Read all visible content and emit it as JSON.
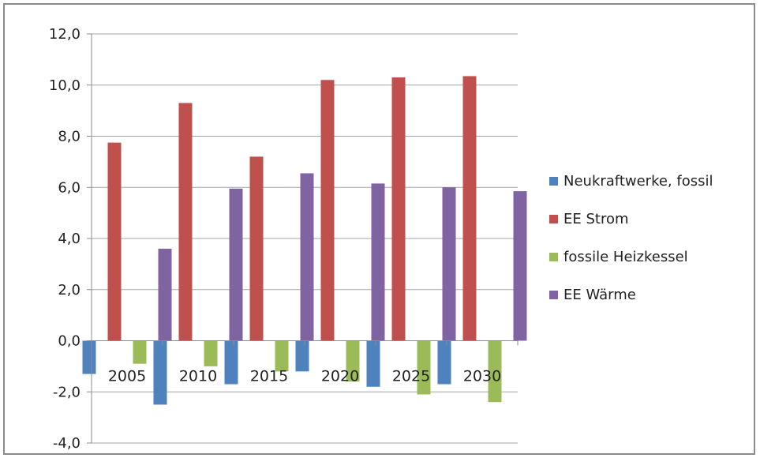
{
  "chart_data": {
    "type": "bar",
    "title": "",
    "xlabel": "",
    "ylabel": "",
    "categories": [
      "2005",
      "2010",
      "2015",
      "2020",
      "2025",
      "2030"
    ],
    "series": [
      {
        "name": "Neukraftwerke, fossil",
        "color": "#4f81bd",
        "values": [
          -1.3,
          -2.5,
          -1.7,
          -1.2,
          -1.8,
          -1.7
        ]
      },
      {
        "name": "EE Strom",
        "color": "#c0504d",
        "values": [
          7.75,
          9.3,
          7.2,
          10.2,
          10.3,
          10.35
        ]
      },
      {
        "name": "fossile Heizkessel",
        "color": "#9bbb59",
        "values": [
          -0.9,
          -1.0,
          -1.2,
          -1.6,
          -2.1,
          -2.4
        ]
      },
      {
        "name": "EE Wärme",
        "color": "#8064a2",
        "values": [
          3.6,
          5.95,
          6.55,
          6.15,
          6.0,
          5.85
        ]
      }
    ],
    "ylim": [
      -4.0,
      12.0
    ],
    "yticks": [
      {
        "value": -4,
        "label": "-4,0"
      },
      {
        "value": -2,
        "label": "-2,0"
      },
      {
        "value": 0,
        "label": "0,0"
      },
      {
        "value": 2,
        "label": "2,0"
      },
      {
        "value": 4,
        "label": "4,0"
      },
      {
        "value": 6,
        "label": "6,0"
      },
      {
        "value": 8,
        "label": "8,0"
      },
      {
        "value": 10,
        "label": "10,0"
      },
      {
        "value": 12,
        "label": "12,0"
      }
    ],
    "grid": true,
    "legend_position": "right"
  }
}
